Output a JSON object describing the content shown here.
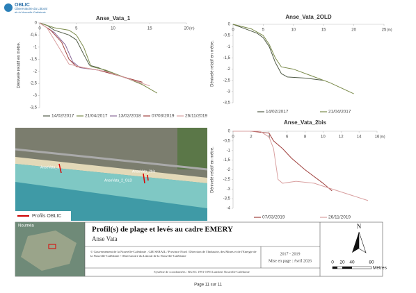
{
  "chart_data": [
    {
      "type": "line",
      "title": "Anse_Vata_1",
      "y_label": "Dénivelé relatif en mètre.",
      "x_label": "(m)",
      "xlim": [
        0,
        20
      ],
      "xticks": [
        0,
        5,
        10,
        15,
        20
      ],
      "ylim": [
        -3.5,
        0
      ],
      "yticks": [
        0,
        {
          "value": -0.5,
          "label": "-0,5"
        },
        -1,
        {
          "value": -1.5,
          "label": "-1,5"
        },
        -2,
        {
          "value": -2.5,
          "label": "-2,5"
        },
        -3,
        {
          "value": -3.5,
          "label": "-3,5"
        }
      ],
      "grid": false,
      "series": [
        {
          "name": "14/02/2017",
          "color": "#4f5a45",
          "x": [
            0,
            1,
            2,
            4,
            5,
            6,
            6.8,
            8,
            10,
            12,
            14
          ],
          "values": [
            0,
            -0.1,
            -0.3,
            -0.5,
            -0.7,
            -1.3,
            -1.75,
            -1.85,
            -2.1,
            -2.3,
            -2.5
          ]
        },
        {
          "name": "21/04/2017",
          "color": "#7a8a4a",
          "x": [
            0,
            2,
            4,
            5,
            6,
            7,
            9,
            12,
            14,
            16
          ],
          "values": [
            0,
            -0.2,
            -0.3,
            -0.5,
            -1.0,
            -1.8,
            -1.95,
            -2.3,
            -2.55,
            -2.9
          ]
        },
        {
          "name": "13/02/2018",
          "color": "#8a6a9a",
          "x": [
            0,
            2,
            3.5,
            4.5,
            5.5,
            8,
            11,
            14
          ],
          "values": [
            0,
            -0.4,
            -0.9,
            -1.6,
            -1.85,
            -1.95,
            -2.2,
            -2.5
          ]
        },
        {
          "name": "07/03/2019",
          "color": "#a0413e",
          "x": [
            0,
            1.5,
            3,
            4,
            5,
            8,
            11,
            14
          ],
          "values": [
            0,
            -0.3,
            -0.8,
            -1.5,
            -1.8,
            -1.95,
            -2.2,
            -2.45
          ]
        },
        {
          "name": "26/11/2019",
          "color": "#d9a0a0",
          "x": [
            0,
            1,
            3,
            4,
            6,
            9,
            12,
            15
          ],
          "values": [
            0,
            -0.2,
            -1.2,
            -1.7,
            -1.85,
            -2.0,
            -2.3,
            -2.6
          ]
        }
      ]
    },
    {
      "type": "line",
      "title": "Anse_Vata_2OLD",
      "y_label": "Dénivelé relatif en mètre.",
      "x_label": "(m)",
      "xlim": [
        0,
        25
      ],
      "xticks": [
        0,
        5,
        10,
        15,
        20,
        25
      ],
      "ylim": [
        -3.5,
        0
      ],
      "yticks": [
        0,
        {
          "value": -0.5,
          "label": "-0,5"
        },
        -1,
        {
          "value": -1.5,
          "label": "-1,5"
        },
        -2,
        {
          "value": -2.5,
          "label": "-2,5"
        },
        -3,
        {
          "value": -3.5,
          "label": "-3,5"
        }
      ],
      "grid": false,
      "series": [
        {
          "name": "14/02/2017",
          "color": "#4f5a45",
          "x": [
            0,
            2,
            4,
            5,
            6,
            7,
            8,
            9,
            12,
            15
          ],
          "values": [
            0,
            -0.2,
            -0.4,
            -0.6,
            -1.0,
            -1.7,
            -2.2,
            -2.35,
            -2.4,
            -2.5
          ]
        },
        {
          "name": "21/04/2017",
          "color": "#7a8a4a",
          "x": [
            0,
            3,
            5,
            6,
            7,
            8,
            10,
            13,
            16,
            20
          ],
          "values": [
            0,
            -0.2,
            -0.5,
            -0.9,
            -1.5,
            -1.9,
            -2.0,
            -2.3,
            -2.6,
            -3.1
          ]
        }
      ]
    },
    {
      "type": "line",
      "title": "Anse_Vata_2bis",
      "y_label": "Dénivelé relatif en mètre.",
      "x_label": "(m)",
      "xlim": [
        0,
        16
      ],
      "xticks": [
        0,
        2,
        4,
        6,
        8,
        10,
        12,
        14,
        16
      ],
      "ylim": [
        -4,
        0
      ],
      "yticks": [
        0,
        {
          "value": -0.5,
          "label": "-0,5"
        },
        -1,
        {
          "value": -1.5,
          "label": "-1,5"
        },
        -2,
        {
          "value": -2.5,
          "label": "-2,5"
        },
        -3,
        {
          "value": -3.5,
          "label": "-3,5"
        },
        -4
      ],
      "grid": false,
      "series": [
        {
          "name": "07/03/2019",
          "color": "#a0413e",
          "x": [
            0,
            2,
            4,
            4.5,
            5.5,
            6.5,
            8,
            10,
            11
          ],
          "values": [
            0,
            0,
            -0.1,
            -0.5,
            -0.9,
            -1.4,
            -2.0,
            -2.7,
            -3.1
          ]
        },
        {
          "name": "26/11/2019",
          "color": "#d9a0a0",
          "x": [
            0,
            3,
            4,
            4.5,
            5,
            5.5,
            7,
            9,
            11,
            15
          ],
          "values": [
            0,
            0,
            -0.3,
            -0.9,
            -2.5,
            -2.7,
            -2.6,
            -2.7,
            -3.0,
            -3.6
          ]
        }
      ]
    }
  ],
  "logo": {
    "name": "OBLIC",
    "subtitle": "Observatoire du Littoral",
    "region": "de la Nouvelle-Calédonie"
  },
  "map": {
    "labels": [
      "AnseVata_1",
      "AnseVata_2bis",
      "AnseVata_2_OLD"
    ],
    "legend": "Profils OBLIC",
    "inset_label": "Nouméa"
  },
  "title_block": {
    "title": "Profil(s) de plage et levés au cadre EMERY",
    "subtitle": "Anse Vata",
    "credits": "© Gouvernement de la Nouvelle-Calédonie , GIE SERAIL / Province Nord / Direction de l'Industrie, des Mines et de l'Energie de la Nouvelle-Calédonie / Observatoire du Littoral de la Nouvelle-Calédonie",
    "period": "2017 - 2019",
    "layout_date": "Mise en page : Avril 2026",
    "crs": "Système de coordonnées : RGNC 1991-1993 Lambert Nouvelle-Calédonie"
  },
  "north": "N",
  "scale": {
    "labels": [
      "0",
      "20",
      "40",
      "80"
    ],
    "unit": "Mètres"
  },
  "footer": "Page 11 sur 11"
}
